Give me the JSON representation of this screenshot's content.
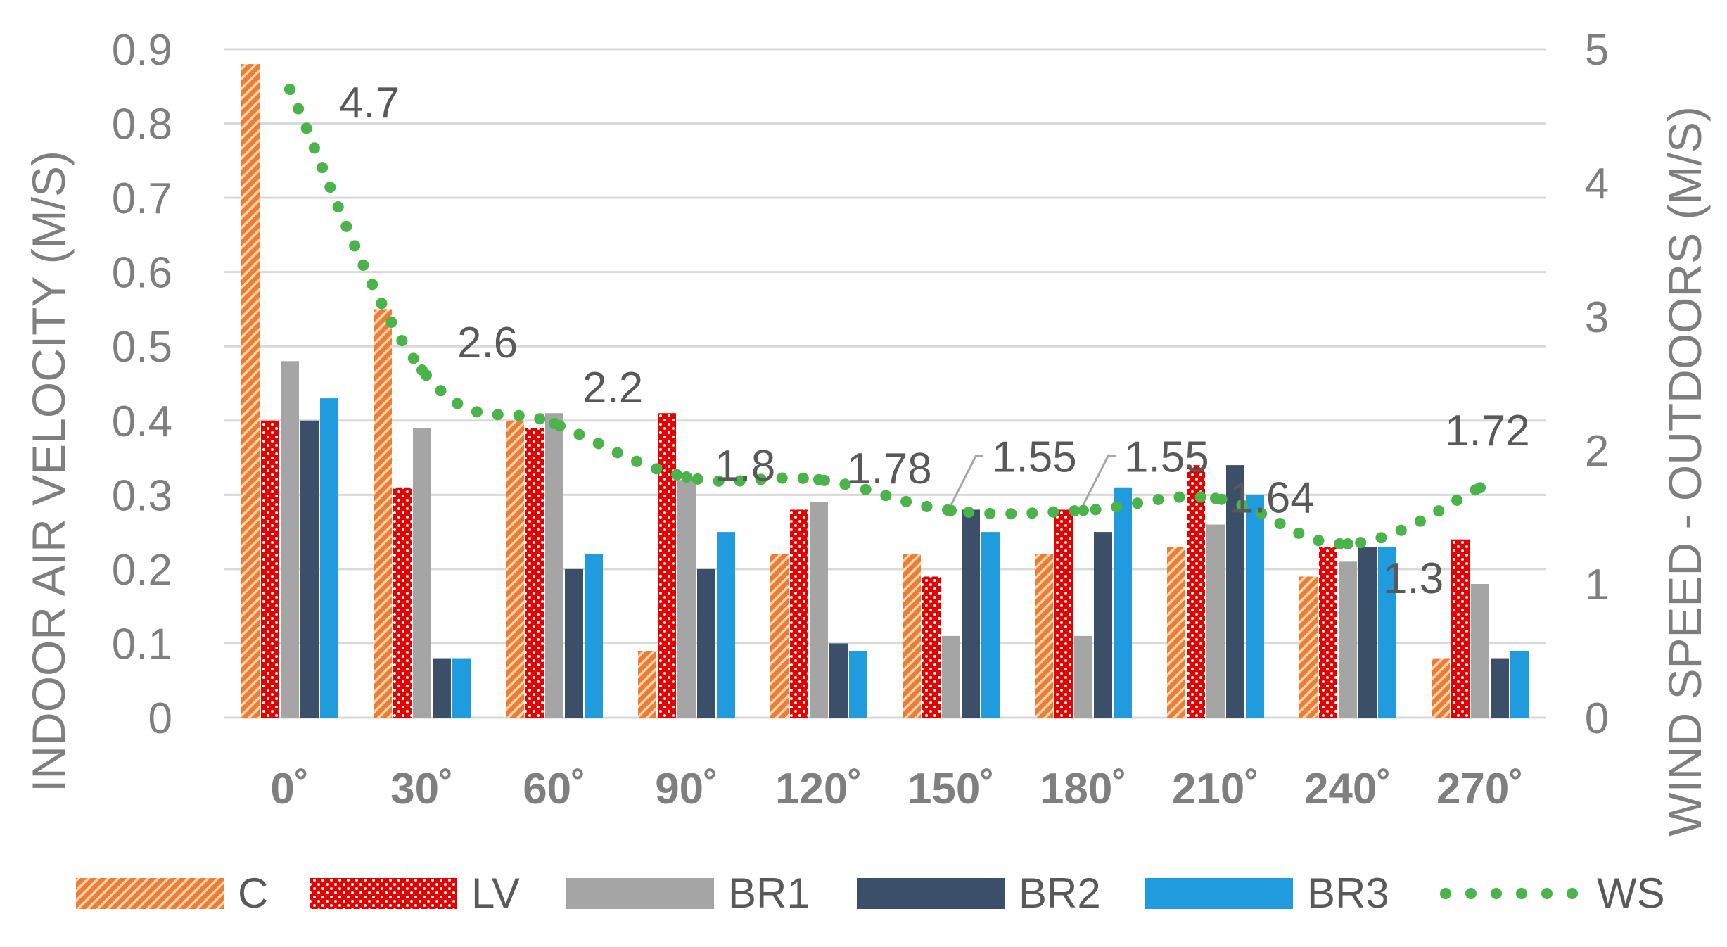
{
  "chart_data": {
    "type": "bar",
    "title": "",
    "categories": [
      "0˚",
      "30˚",
      "60˚",
      "90˚",
      "120˚",
      "150˚",
      "180˚",
      "210˚",
      "240˚",
      "270˚"
    ],
    "ylabel": "INDOOR AIR VELOCITY (M/S)",
    "ylim": [
      0,
      0.9
    ],
    "yticks": [
      "0",
      "0.1",
      "0.2",
      "0.3",
      "0.4",
      "0.5",
      "0.6",
      "0.7",
      "0.8",
      "0.9"
    ],
    "y2label": "WIND SPEED - OUTDOORS  (M/S)",
    "y2lim": [
      0,
      5
    ],
    "y2ticks": [
      "0",
      "1",
      "2",
      "3",
      "4",
      "5"
    ],
    "grid": true,
    "legend_position": "bottom",
    "series": [
      {
        "name": "C",
        "style": "orange-diagonal-hatch",
        "color": "#ed7d31",
        "values": [
          0.88,
          0.55,
          0.4,
          0.09,
          0.22,
          0.22,
          0.22,
          0.23,
          0.19,
          0.08
        ]
      },
      {
        "name": "LV",
        "style": "red-white-dots",
        "color": "#e60000",
        "values": [
          0.4,
          0.31,
          0.39,
          0.41,
          0.28,
          0.19,
          0.28,
          0.34,
          0.23,
          0.24
        ]
      },
      {
        "name": "BR1",
        "style": "solid",
        "color": "#a5a5a5",
        "values": [
          0.48,
          0.39,
          0.41,
          0.32,
          0.29,
          0.11,
          0.11,
          0.26,
          0.21,
          0.18
        ]
      },
      {
        "name": "BR2",
        "style": "solid",
        "color": "#3c4f68",
        "values": [
          0.4,
          0.08,
          0.2,
          0.2,
          0.1,
          0.28,
          0.25,
          0.34,
          0.23,
          0.08
        ]
      },
      {
        "name": "BR3",
        "style": "solid",
        "color": "#1f9bde",
        "values": [
          0.43,
          0.08,
          0.22,
          0.25,
          0.09,
          0.25,
          0.31,
          0.3,
          0.23,
          0.09
        ]
      }
    ],
    "line_series": {
      "name": "WS",
      "axis": "secondary",
      "style": "dotted",
      "color": "#4ab34a",
      "values": [
        4.7,
        2.6,
        2.2,
        1.8,
        1.78,
        1.55,
        1.55,
        1.64,
        1.3,
        1.72
      ],
      "labels": [
        "4.7",
        "2.6",
        "2.2",
        "1.8",
        "1.78",
        "1.55",
        "1.55",
        "1.64",
        "1.3",
        "1.72"
      ]
    }
  }
}
